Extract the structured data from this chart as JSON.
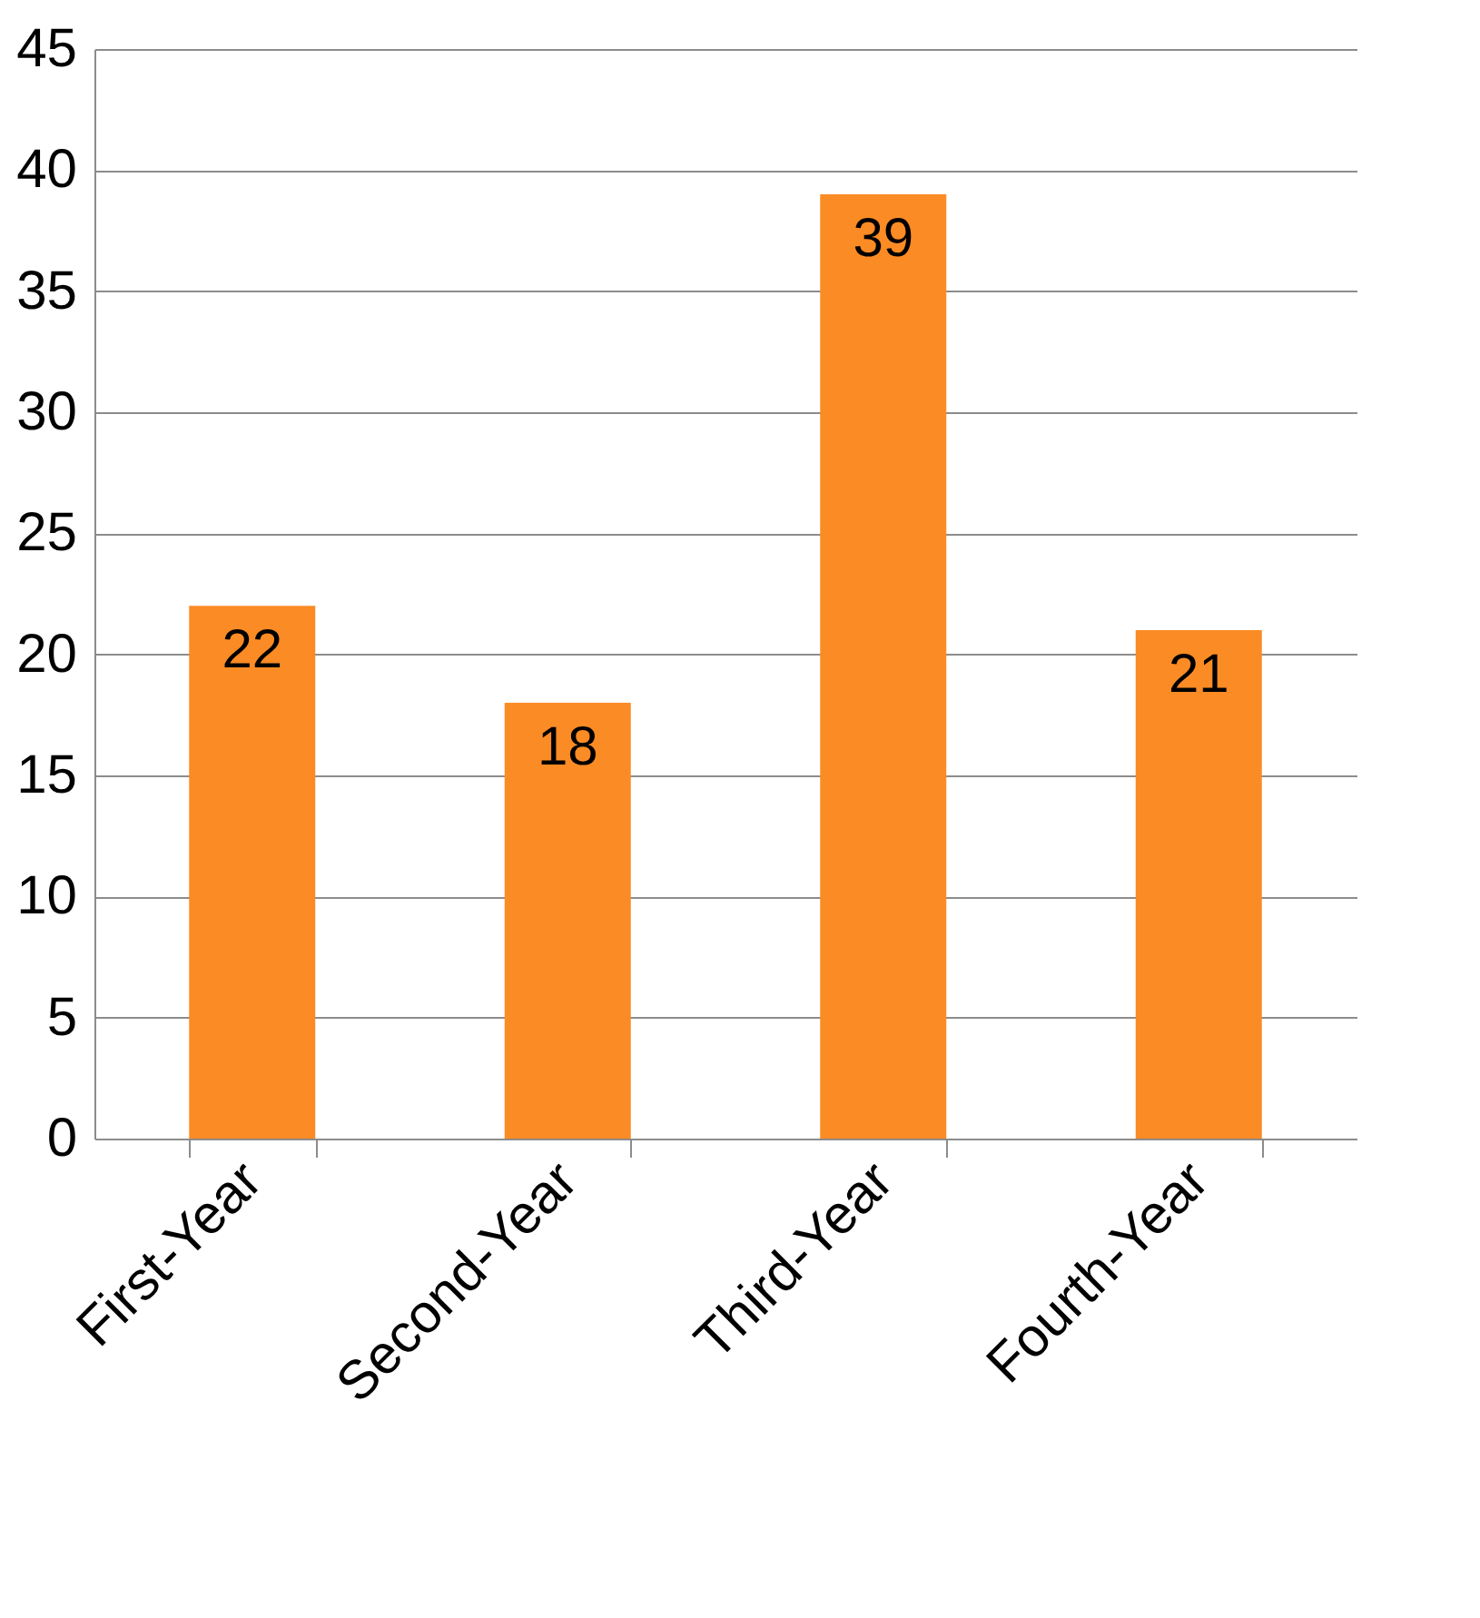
{
  "chart_data": {
    "type": "bar",
    "categories": [
      "First-Year",
      "Second-Year",
      "Third-Year",
      "Fourth-Year"
    ],
    "values": [
      22,
      18,
      39,
      21
    ],
    "color": "#fb8b24",
    "ylim": [
      0,
      45
    ],
    "yticks": [
      0,
      5,
      10,
      15,
      20,
      25,
      30,
      35,
      40,
      45
    ],
    "grid": "y",
    "data_labels": true
  }
}
